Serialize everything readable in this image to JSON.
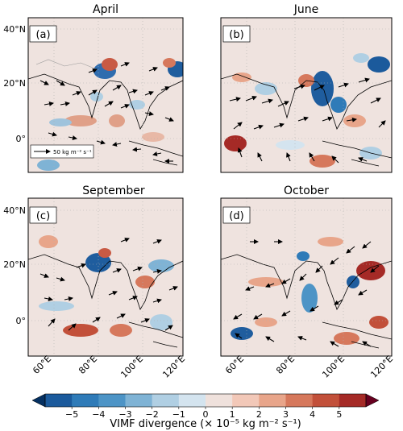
{
  "colorbar": {
    "label": "VIMF divergence (× 10⁻⁵ kg m⁻² s⁻¹)",
    "ticks": [
      "−5",
      "−4",
      "−3",
      "−2",
      "−1",
      "0",
      "1",
      "2",
      "3",
      "4",
      "5"
    ],
    "colors": [
      "#053061",
      "#1b5a9c",
      "#2f7bb8",
      "#4d94c6",
      "#7fb3d5",
      "#b0cfe3",
      "#d4e4ef",
      "#efe1dc",
      "#f2c8b8",
      "#e8a58a",
      "#d6785c",
      "#c2503a",
      "#a52a26",
      "#67001f"
    ]
  },
  "reference_vector": {
    "label": "50 kg m⁻² s⁻¹"
  },
  "panels": [
    {
      "title": "April",
      "label": "(a)"
    },
    {
      "title": "June",
      "label": "(b)"
    },
    {
      "title": "September",
      "label": "(c)"
    },
    {
      "title": "October",
      "label": "(d)"
    }
  ],
  "axes": {
    "lat_ticks": [
      "40°N",
      "20°N",
      "0°"
    ],
    "lon_ticks": [
      "60°E",
      "80°E",
      "100°E",
      "120°E"
    ]
  }
}
